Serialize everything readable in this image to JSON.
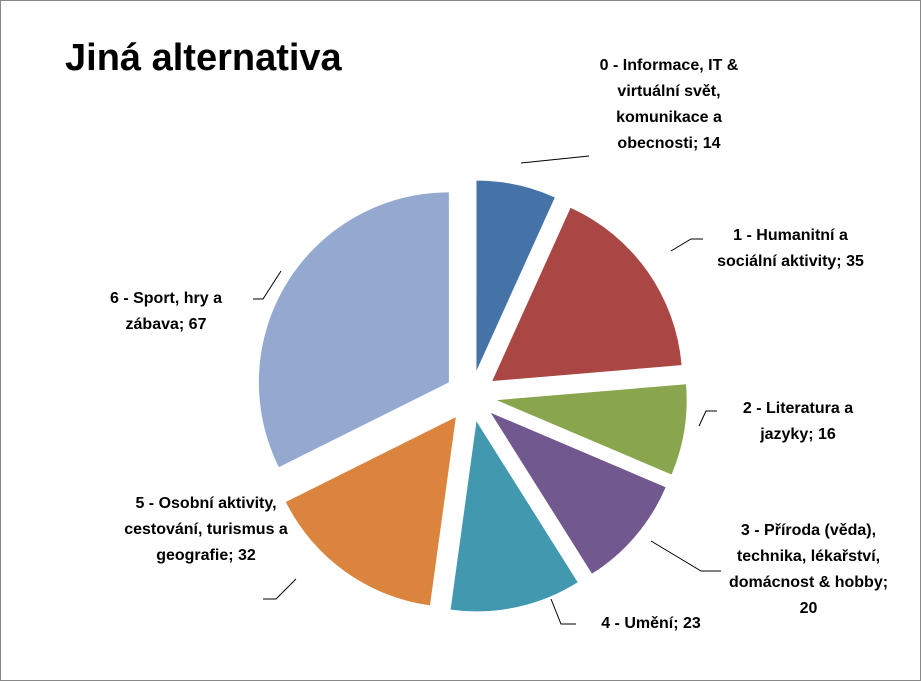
{
  "chart_data": {
    "type": "pie",
    "title": "Jiná alternativa",
    "labels": [
      "0 - Informace, IT & virtuální svět, komunikace a obecnosti; 14",
      "1 - Humanitní a sociální aktivity; 35",
      "2 - Literatura a jazyky; 16",
      "3 - Příroda (věda), technika, lékařství, domácnost & hobby; 20",
      "4 - Umění; 23",
      "5 - Osobní aktivity, cestování, turismus a geografie; 32",
      "6 - Sport, hry a zábava; 67"
    ],
    "values": [
      14,
      35,
      16,
      20,
      23,
      32,
      67
    ],
    "colors": [
      "#4572a7",
      "#aa4643",
      "#89a54e",
      "#71588f",
      "#4198af",
      "#db843d",
      "#93a9cf"
    ],
    "exploded": true
  }
}
